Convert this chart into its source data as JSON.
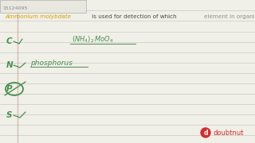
{
  "bg_color": "#f0efe8",
  "line_color": "#d0cfc8",
  "margin_line_color": "#c8a0a0",
  "header_id": "15124095",
  "header_box_color": "#e8e7e0",
  "header_border_color": "#b0b0a8",
  "q_parts": [
    {
      "text": "Ammonium molybdate",
      "color": "#d4a000",
      "italic": true
    },
    {
      "text": " is used for detection of which ",
      "color": "#505050",
      "italic": false
    },
    {
      "text": "element in organic compound",
      "color": "#909090",
      "italic": false
    },
    {
      "text": " :",
      "color": "#505050",
      "italic": false
    }
  ],
  "green": "#4a9050",
  "red_logo": "#d03030",
  "figsize": [
    3.2,
    1.8
  ],
  "dpi": 100
}
